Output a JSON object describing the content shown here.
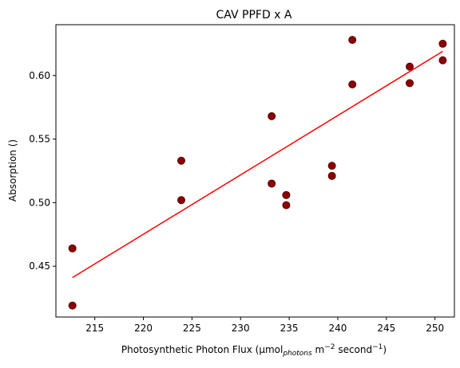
{
  "chart_data": {
    "type": "scatter",
    "title": "CAV PPFD x A",
    "xlabel": {
      "prefix": "Photosynthetic Photon Flux (μmol",
      "sub": "photons",
      "mid": " m",
      "sup1": "−2",
      "mid2": " second",
      "sup2": "−1",
      "suffix": ")"
    },
    "ylabel": "Absorption ()",
    "xlim": [
      211,
      252
    ],
    "ylim": [
      0.41,
      0.64
    ],
    "xticks": [
      215,
      220,
      225,
      230,
      235,
      240,
      245,
      250
    ],
    "xtick_labels": [
      "215",
      "220",
      "225",
      "230",
      "235",
      "240",
      "245",
      "250"
    ],
    "yticks": [
      0.45,
      0.5,
      0.55,
      0.6
    ],
    "ytick_labels": [
      "0.45",
      "0.50",
      "0.55",
      "0.60"
    ],
    "grid": false,
    "point_color": "#8b0000",
    "point_edge_color": "#5a0000",
    "fit_color": "#ff0000",
    "points": [
      {
        "x": 212.7,
        "y": 0.464
      },
      {
        "x": 212.7,
        "y": 0.419
      },
      {
        "x": 223.9,
        "y": 0.533
      },
      {
        "x": 223.9,
        "y": 0.502
      },
      {
        "x": 233.2,
        "y": 0.568
      },
      {
        "x": 233.2,
        "y": 0.515
      },
      {
        "x": 234.7,
        "y": 0.506
      },
      {
        "x": 234.7,
        "y": 0.498
      },
      {
        "x": 239.4,
        "y": 0.529
      },
      {
        "x": 239.4,
        "y": 0.521
      },
      {
        "x": 241.5,
        "y": 0.628
      },
      {
        "x": 241.5,
        "y": 0.593
      },
      {
        "x": 247.4,
        "y": 0.607
      },
      {
        "x": 247.4,
        "y": 0.594
      },
      {
        "x": 250.8,
        "y": 0.625
      },
      {
        "x": 250.8,
        "y": 0.612
      }
    ],
    "fit_line": {
      "x": [
        212.7,
        250.8
      ],
      "y": [
        0.441,
        0.619
      ]
    }
  }
}
